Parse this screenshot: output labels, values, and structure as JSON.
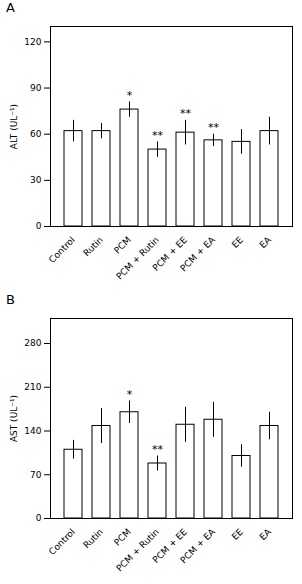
{
  "chart_data": [
    {
      "type": "bar",
      "title": "A",
      "ylabel": "ALT (UL⁻¹)",
      "categories": [
        "Control",
        "Rutin",
        "PCM",
        "PCM + Rutin",
        "PCM + EE",
        "PCM + EA",
        "EE",
        "EA"
      ],
      "values": [
        62,
        62,
        76,
        50,
        61,
        56,
        55,
        62
      ],
      "errors": [
        7,
        5,
        5,
        5,
        8,
        4,
        8,
        9
      ],
      "annotations": [
        null,
        null,
        "*",
        "**",
        "**",
        "**",
        null,
        null
      ],
      "color": "#ffffff",
      "ylim": [
        0,
        130
      ],
      "yticks": [
        0,
        30,
        60,
        90,
        120
      ],
      "grid": false
    },
    {
      "type": "bar",
      "title": "B",
      "ylabel": "AST (UL⁻¹)",
      "categories": [
        "Control",
        "Rutin",
        "PCM",
        "PCM + Rutin",
        "PCM + EE",
        "PCM + EA",
        "EE",
        "EA"
      ],
      "values": [
        110,
        148,
        170,
        88,
        150,
        158,
        100,
        148
      ],
      "errors": [
        15,
        28,
        18,
        12,
        28,
        28,
        18,
        22
      ],
      "annotations": [
        null,
        null,
        "*",
        "**",
        null,
        null,
        null,
        null
      ],
      "color": "#ffffff",
      "ylim": [
        0,
        320
      ],
      "yticks": [
        0,
        70,
        140,
        210,
        280
      ],
      "grid": false
    }
  ]
}
